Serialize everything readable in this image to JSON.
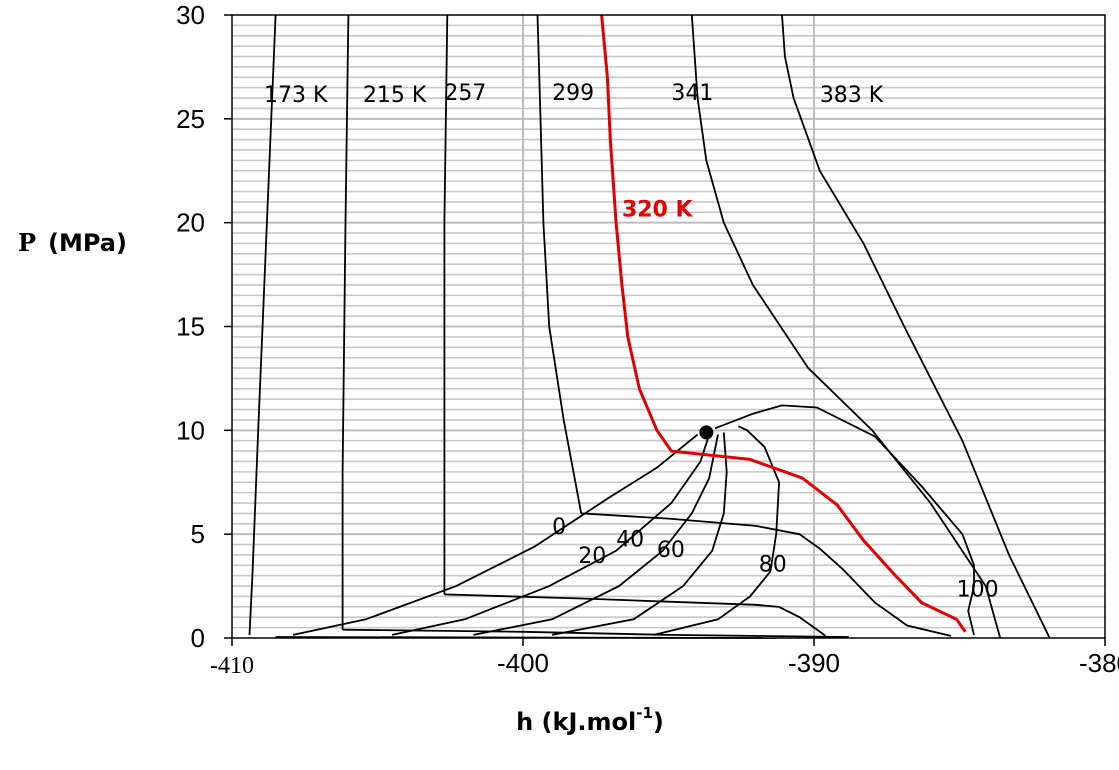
{
  "chart_data": {
    "type": "line",
    "title": "",
    "xlabel": "h (kJ.mol",
    "xlabel_sup": "-1",
    "xlabel_end": ")",
    "ylabel_p": "P",
    "ylabel_rest": "(MPa)",
    "xlim": [
      -410,
      -380
    ],
    "ylim": [
      0,
      30
    ],
    "x_ticks": [
      "-410",
      "-400",
      "-390",
      "-380"
    ],
    "y_ticks": [
      "0",
      "5",
      "10",
      "15",
      "20",
      "25",
      "30"
    ],
    "grid": "horizontal every 0.5 MPa, vertical every 10 kJ/mol",
    "critical_point": {
      "x": -393.7,
      "y": 9.9
    },
    "isotherms": [
      {
        "name": "173 K",
        "points": [
          [
            -409.4,
            0.15
          ],
          [
            -409.3,
            3
          ],
          [
            -409.1,
            10
          ],
          [
            -408.8,
            20
          ],
          [
            -408.5,
            30
          ]
        ]
      },
      {
        "name": "215 K",
        "points": [
          [
            -406.2,
            0.4
          ],
          [
            -406.2,
            8
          ],
          [
            -406.1,
            20
          ],
          [
            -406.0,
            30
          ]
        ]
      },
      {
        "name": "257",
        "points": [
          [
            -402.7,
            2.1
          ],
          [
            -402.7,
            10
          ],
          [
            -402.7,
            20
          ],
          [
            -402.6,
            30
          ]
        ]
      },
      {
        "name": "299",
        "points": [
          [
            -398.0,
            6.0
          ],
          [
            -398.2,
            7.5
          ],
          [
            -398.6,
            10.5
          ],
          [
            -399.1,
            15
          ],
          [
            -399.3,
            20
          ],
          [
            -399.4,
            25
          ],
          [
            -399.5,
            30
          ]
        ]
      },
      {
        "name": "320 K",
        "points": [
          [
            -384.8,
            0.3
          ],
          [
            -385.1,
            0.9
          ],
          [
            -386.3,
            1.7
          ],
          [
            -387.2,
            3.0
          ],
          [
            -388.3,
            4.7
          ],
          [
            -389.2,
            6.4
          ],
          [
            -390.4,
            7.7
          ],
          [
            -392.2,
            8.6
          ],
          [
            -394.9,
            9.0
          ],
          [
            -395.4,
            10.0
          ],
          [
            -396.0,
            12.0
          ],
          [
            -396.4,
            14.5
          ],
          [
            -396.6,
            17
          ],
          [
            -396.8,
            20
          ],
          [
            -397.0,
            24
          ],
          [
            -397.1,
            27
          ],
          [
            -397.3,
            30
          ]
        ]
      },
      {
        "name": "341",
        "points": [
          [
            -383.6,
            0.0
          ],
          [
            -384.1,
            2.5
          ],
          [
            -386.0,
            6.5
          ],
          [
            -388.0,
            10
          ],
          [
            -390.2,
            13
          ],
          [
            -392.1,
            17
          ],
          [
            -393.1,
            20
          ],
          [
            -393.7,
            23
          ],
          [
            -394.0,
            26
          ],
          [
            -394.1,
            28
          ],
          [
            -394.2,
            30
          ]
        ]
      },
      {
        "name": "383 K",
        "points": [
          [
            -381.9,
            0.0
          ],
          [
            -383.3,
            4
          ],
          [
            -384.9,
            9.5
          ],
          [
            -386.9,
            15
          ],
          [
            -388.3,
            19
          ],
          [
            -389.8,
            22.5
          ],
          [
            -390.7,
            26
          ],
          [
            -391.0,
            28
          ],
          [
            -391.1,
            30
          ]
        ]
      }
    ],
    "quality_curves": [
      {
        "name": "0",
        "points": [
          [
            -407.9,
            0.15
          ],
          [
            -405.4,
            0.9
          ],
          [
            -402.3,
            2.5
          ],
          [
            -399.6,
            4.4
          ],
          [
            -397.0,
            6.8
          ],
          [
            -395.4,
            8.2
          ],
          [
            -394.0,
            9.8
          ]
        ]
      },
      {
        "name": "20",
        "points": [
          [
            -404.5,
            0.15
          ],
          [
            -402.0,
            0.9
          ],
          [
            -399.1,
            2.5
          ],
          [
            -396.8,
            4.2
          ],
          [
            -394.9,
            6.5
          ],
          [
            -393.9,
            8.5
          ],
          [
            -393.6,
            9.8
          ]
        ]
      },
      {
        "name": "40",
        "points": [
          [
            -401.7,
            0.15
          ],
          [
            -399.0,
            0.9
          ],
          [
            -396.7,
            2.5
          ],
          [
            -395.2,
            4.2
          ],
          [
            -394.2,
            6.0
          ],
          [
            -393.6,
            7.7
          ],
          [
            -393.3,
            9.8
          ]
        ]
      },
      {
        "name": "60",
        "points": [
          [
            -399.0,
            0.15
          ],
          [
            -396.2,
            0.9
          ],
          [
            -394.5,
            2.5
          ],
          [
            -393.5,
            4.2
          ],
          [
            -393.1,
            6.0
          ],
          [
            -393.0,
            8.0
          ],
          [
            -393.1,
            9.9
          ]
        ]
      },
      {
        "name": "80",
        "points": [
          [
            -395.5,
            0.15
          ],
          [
            -393.3,
            0.9
          ],
          [
            -392.2,
            2.0
          ],
          [
            -391.5,
            3.2
          ],
          [
            -391.3,
            5.0
          ],
          [
            -391.2,
            7.5
          ],
          [
            -391.7,
            9.2
          ],
          [
            -392.3,
            10.0
          ],
          [
            -392.6,
            10.2
          ]
        ]
      },
      {
        "name": "100",
        "points": [
          [
            -384.5,
            0.15
          ],
          [
            -384.7,
            1.3
          ],
          [
            -384.5,
            2.5
          ],
          [
            -384.5,
            3.5
          ],
          [
            -384.9,
            5.0
          ],
          [
            -386.3,
            7.3
          ],
          [
            -387.9,
            9.7
          ],
          [
            -389.9,
            11.1
          ],
          [
            -391.1,
            11.2
          ],
          [
            -392.1,
            10.8
          ],
          [
            -393.4,
            10.1
          ]
        ]
      }
    ],
    "tie_lines": [
      {
        "points": [
          [
            -408.5,
            0.05
          ],
          [
            -391.3,
            0.0
          ]
        ]
      },
      {
        "points": [
          [
            -406.2,
            0.4
          ],
          [
            -400.0,
            0.3
          ],
          [
            -395.0,
            0.15
          ],
          [
            -388.8,
            0.05
          ]
        ]
      },
      {
        "points": [
          [
            -402.7,
            2.1
          ],
          [
            -398.0,
            1.9
          ],
          [
            -395.0,
            1.75
          ],
          [
            -392.0,
            1.6
          ],
          [
            -391.2,
            1.5
          ],
          [
            -390.5,
            1.0
          ],
          [
            -389.6,
            0.1
          ]
        ]
      },
      {
        "points": [
          [
            -398.0,
            6.0
          ],
          [
            -395.0,
            5.75
          ],
          [
            -392.0,
            5.4
          ],
          [
            -390.5,
            5.0
          ],
          [
            -389.8,
            4.3
          ],
          [
            -389.0,
            3.3
          ],
          [
            -387.9,
            1.7
          ],
          [
            -386.8,
            0.6
          ],
          [
            -385.3,
            0.1
          ]
        ]
      }
    ],
    "isotherm_labels": [
      {
        "text": "173 K",
        "x": -408.9,
        "y": 25.8
      },
      {
        "text": "215 K",
        "x": -405.5,
        "y": 25.8
      },
      {
        "text": "257",
        "x": -402.7,
        "y": 25.9
      },
      {
        "text": "299",
        "x": -399.0,
        "y": 25.9
      },
      {
        "text": "341",
        "x": -394.9,
        "y": 25.9
      },
      {
        "text": "383 K",
        "x": -389.8,
        "y": 25.8
      }
    ],
    "quality_labels": [
      {
        "text": "0",
        "x": -399.0,
        "y": 5.0
      },
      {
        "text": "20",
        "x": -398.1,
        "y": 3.6
      },
      {
        "text": "40",
        "x": -396.8,
        "y": 4.4
      },
      {
        "text": "60",
        "x": -395.4,
        "y": 3.9
      },
      {
        "text": "80",
        "x": -391.9,
        "y": 3.2
      },
      {
        "text": "100",
        "x": -385.1,
        "y": 2.0
      }
    ],
    "red_label": {
      "text": "320 K",
      "x": -396.6,
      "y": 20.3
    }
  }
}
